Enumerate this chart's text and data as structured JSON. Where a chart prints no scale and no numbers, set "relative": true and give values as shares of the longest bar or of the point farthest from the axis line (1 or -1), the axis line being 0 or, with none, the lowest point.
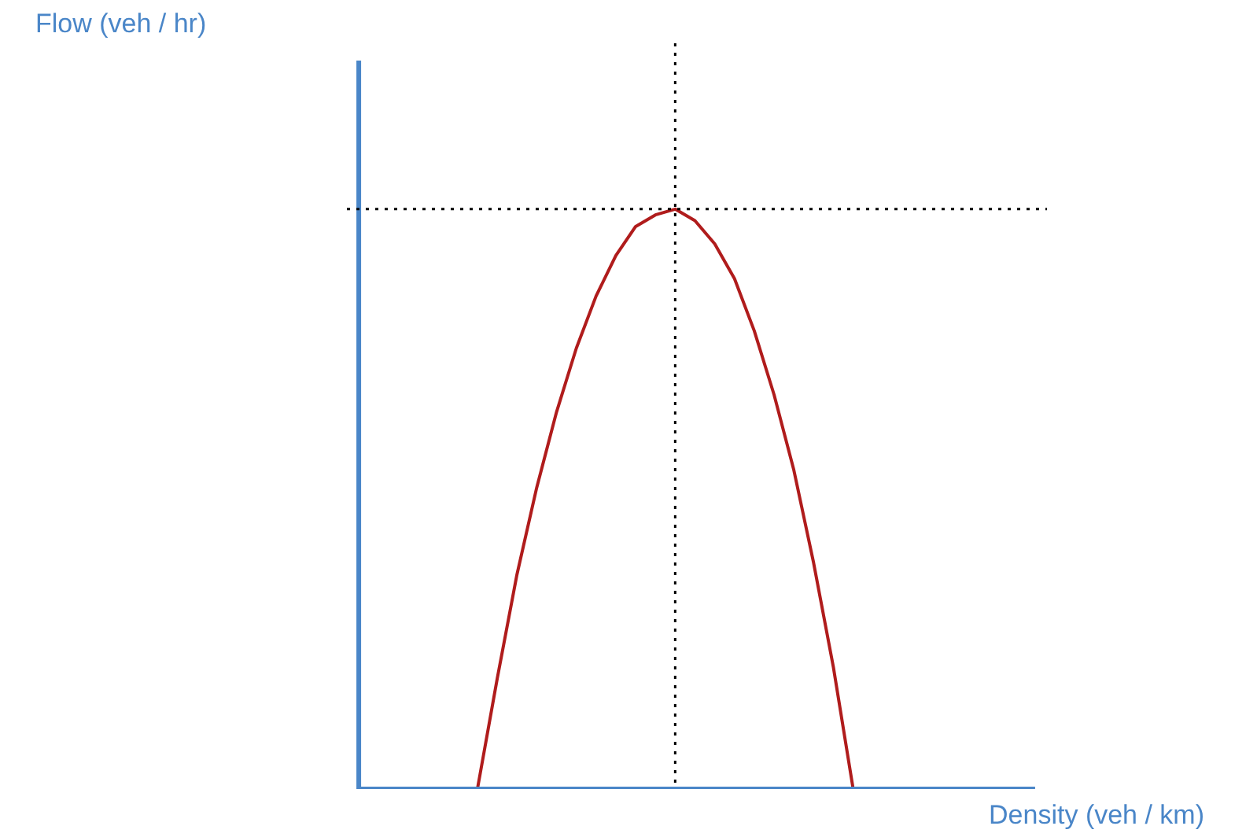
{
  "chart_data": {
    "type": "line",
    "relative": true,
    "xlabel": "Density (veh / km)",
    "tick_labels": false,
    "annotations": [
      "Flow (veh / hr)"
    ],
    "categories": [
      null,
      null,
      null,
      null,
      null,
      null,
      null,
      null,
      null,
      null,
      null,
      null,
      null,
      null,
      null,
      null,
      null,
      null,
      null,
      null
    ],
    "series": [
      {
        "color": "#b01c1c",
        "values": [
          0,
          0.19,
          0.37,
          0.52,
          0.65,
          0.76,
          0.85,
          0.92,
          0.97,
          0.99,
          1,
          0.98,
          0.94,
          0.88,
          0.79,
          0.68,
          0.55,
          0.39,
          0.21,
          0
        ]
      }
    ]
  }
}
